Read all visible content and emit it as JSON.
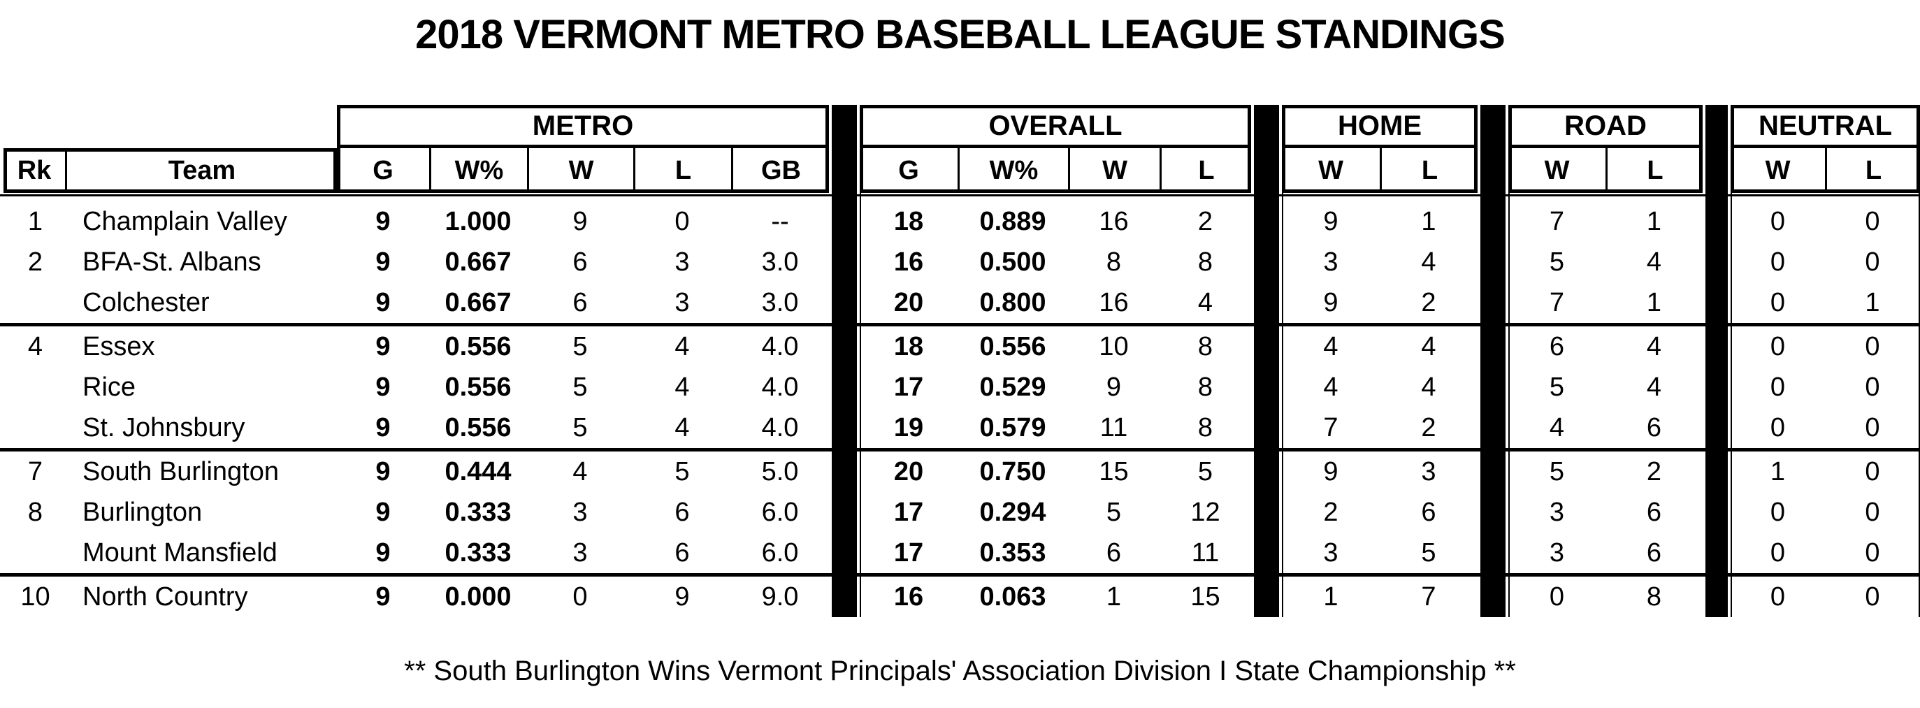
{
  "title": "2018 VERMONT METRO BASEBALL LEAGUE STANDINGS",
  "footer": "** South Burlington Wins Vermont Principals' Association Division I State Championship **",
  "colors": {
    "text": "#000000",
    "background": "#ffffff",
    "divider_bar": "#000000"
  },
  "table": {
    "row_header_columns": [
      "Rk",
      "Team"
    ],
    "groups": [
      {
        "label": "METRO",
        "columns": [
          "G",
          "W%",
          "W",
          "L",
          "GB"
        ]
      },
      {
        "label": "OVERALL",
        "columns": [
          "G",
          "W%",
          "W",
          "L"
        ]
      },
      {
        "label": "HOME",
        "columns": [
          "W",
          "L"
        ]
      },
      {
        "label": "ROAD",
        "columns": [
          "W",
          "L"
        ]
      },
      {
        "label": "NEUTRAL",
        "columns": [
          "W",
          "L"
        ]
      }
    ],
    "rows": [
      {
        "rank": "1",
        "team": "Champlain Valley",
        "metro": {
          "g": "9",
          "wpct": "1.000",
          "w": "9",
          "l": "0",
          "gb": "--"
        },
        "overall": {
          "g": "18",
          "wpct": "0.889",
          "w": "16",
          "l": "2"
        },
        "home": {
          "w": "9",
          "l": "1"
        },
        "road": {
          "w": "7",
          "l": "1"
        },
        "neutral": {
          "w": "0",
          "l": "0"
        }
      },
      {
        "rank": "2",
        "team": "BFA-St. Albans",
        "metro": {
          "g": "9",
          "wpct": "0.667",
          "w": "6",
          "l": "3",
          "gb": "3.0"
        },
        "overall": {
          "g": "16",
          "wpct": "0.500",
          "w": "8",
          "l": "8"
        },
        "home": {
          "w": "3",
          "l": "4"
        },
        "road": {
          "w": "5",
          "l": "4"
        },
        "neutral": {
          "w": "0",
          "l": "0"
        }
      },
      {
        "rank": "",
        "team": "Colchester",
        "metro": {
          "g": "9",
          "wpct": "0.667",
          "w": "6",
          "l": "3",
          "gb": "3.0"
        },
        "overall": {
          "g": "20",
          "wpct": "0.800",
          "w": "16",
          "l": "4"
        },
        "home": {
          "w": "9",
          "l": "2"
        },
        "road": {
          "w": "7",
          "l": "1"
        },
        "neutral": {
          "w": "0",
          "l": "1"
        }
      },
      {
        "rank": "4",
        "team": "Essex",
        "metro": {
          "g": "9",
          "wpct": "0.556",
          "w": "5",
          "l": "4",
          "gb": "4.0"
        },
        "overall": {
          "g": "18",
          "wpct": "0.556",
          "w": "10",
          "l": "8"
        },
        "home": {
          "w": "4",
          "l": "4"
        },
        "road": {
          "w": "6",
          "l": "4"
        },
        "neutral": {
          "w": "0",
          "l": "0"
        }
      },
      {
        "rank": "",
        "team": "Rice",
        "metro": {
          "g": "9",
          "wpct": "0.556",
          "w": "5",
          "l": "4",
          "gb": "4.0"
        },
        "overall": {
          "g": "17",
          "wpct": "0.529",
          "w": "9",
          "l": "8"
        },
        "home": {
          "w": "4",
          "l": "4"
        },
        "road": {
          "w": "5",
          "l": "4"
        },
        "neutral": {
          "w": "0",
          "l": "0"
        }
      },
      {
        "rank": "",
        "team": "St. Johnsbury",
        "metro": {
          "g": "9",
          "wpct": "0.556",
          "w": "5",
          "l": "4",
          "gb": "4.0"
        },
        "overall": {
          "g": "19",
          "wpct": "0.579",
          "w": "11",
          "l": "8"
        },
        "home": {
          "w": "7",
          "l": "2"
        },
        "road": {
          "w": "4",
          "l": "6"
        },
        "neutral": {
          "w": "0",
          "l": "0"
        }
      },
      {
        "rank": "7",
        "team": "South Burlington",
        "metro": {
          "g": "9",
          "wpct": "0.444",
          "w": "4",
          "l": "5",
          "gb": "5.0"
        },
        "overall": {
          "g": "20",
          "wpct": "0.750",
          "w": "15",
          "l": "5"
        },
        "home": {
          "w": "9",
          "l": "3"
        },
        "road": {
          "w": "5",
          "l": "2"
        },
        "neutral": {
          "w": "1",
          "l": "0"
        }
      },
      {
        "rank": "8",
        "team": "Burlington",
        "metro": {
          "g": "9",
          "wpct": "0.333",
          "w": "3",
          "l": "6",
          "gb": "6.0"
        },
        "overall": {
          "g": "17",
          "wpct": "0.294",
          "w": "5",
          "l": "12"
        },
        "home": {
          "w": "2",
          "l": "6"
        },
        "road": {
          "w": "3",
          "l": "6"
        },
        "neutral": {
          "w": "0",
          "l": "0"
        }
      },
      {
        "rank": "",
        "team": "Mount Mansfield",
        "metro": {
          "g": "9",
          "wpct": "0.333",
          "w": "3",
          "l": "6",
          "gb": "6.0"
        },
        "overall": {
          "g": "17",
          "wpct": "0.353",
          "w": "6",
          "l": "11"
        },
        "home": {
          "w": "3",
          "l": "5"
        },
        "road": {
          "w": "3",
          "l": "6"
        },
        "neutral": {
          "w": "0",
          "l": "0"
        }
      },
      {
        "rank": "10",
        "team": "North Country",
        "metro": {
          "g": "9",
          "wpct": "0.000",
          "w": "0",
          "l": "9",
          "gb": "9.0"
        },
        "overall": {
          "g": "16",
          "wpct": "0.063",
          "w": "1",
          "l": "15"
        },
        "home": {
          "w": "1",
          "l": "7"
        },
        "road": {
          "w": "0",
          "l": "8"
        },
        "neutral": {
          "w": "0",
          "l": "0"
        }
      }
    ]
  }
}
